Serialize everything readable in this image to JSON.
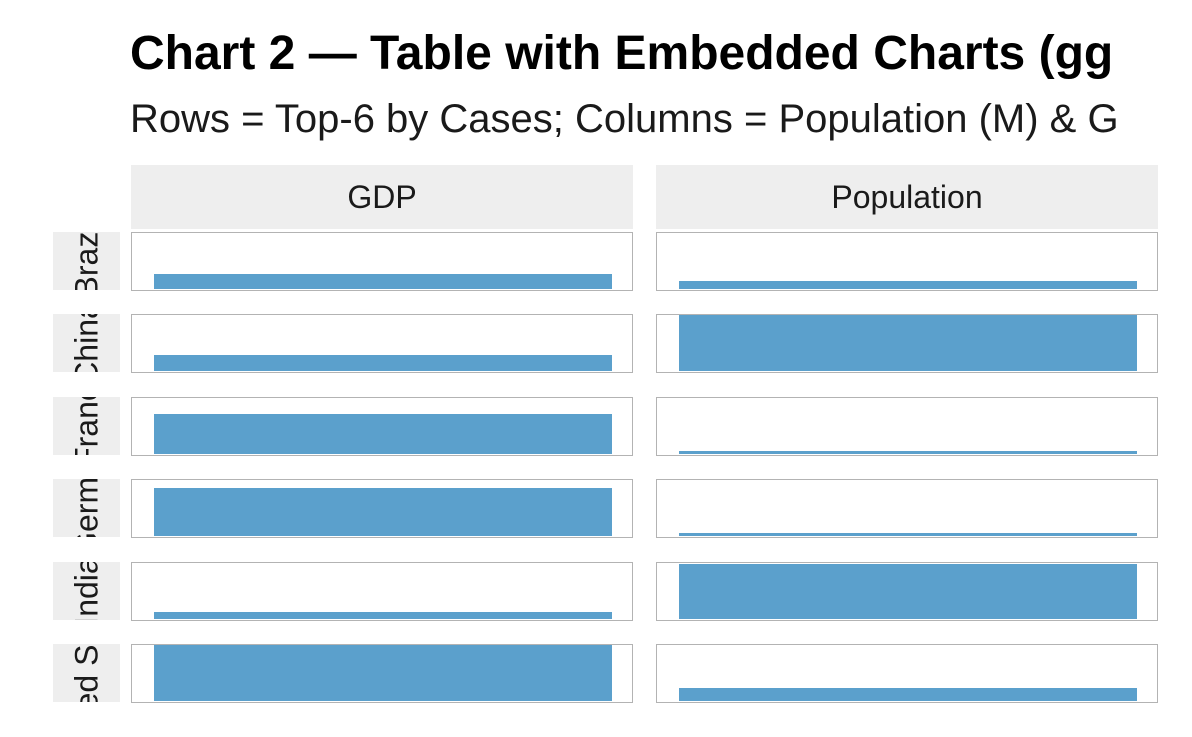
{
  "chart_data": {
    "type": "bar",
    "title": "Chart 2 — Table with Embedded Charts (gg",
    "subtitle": "Rows = Top-6 by Cases; Columns = Population (M) & G",
    "columns": [
      "GDP",
      "Population"
    ],
    "rows": [
      "Brazil",
      "China",
      "France",
      "Germany",
      "India",
      "United States"
    ],
    "row_strip_text": [
      "Brazi",
      "China",
      "Franc",
      "Germa",
      "India",
      "ed St"
    ],
    "cells": [
      {
        "row": "Brazil",
        "GDP": 0.26,
        "Population": 0.15
      },
      {
        "row": "China",
        "GDP": 0.28,
        "Population": 1.0
      },
      {
        "row": "France",
        "GDP": 0.72,
        "Population": 0.05
      },
      {
        "row": "Germany",
        "GDP": 0.85,
        "Population": 0.06
      },
      {
        "row": "India",
        "GDP": 0.13,
        "Population": 0.98
      },
      {
        "row": "United States",
        "GDP": 1.0,
        "Population": 0.23
      }
    ],
    "bar_color": "#5ba0cc",
    "strip_color": "#eeeeee",
    "panel_border_color": "#b3b3b3",
    "grid": false,
    "legend": "none"
  }
}
